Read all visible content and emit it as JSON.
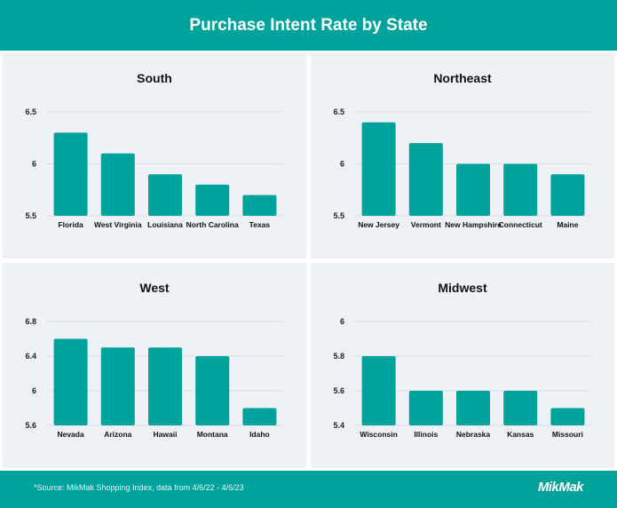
{
  "header": {
    "title": "Purchase Intent Rate by State"
  },
  "footer": {
    "source": "*Source: MikMak Shopping Index, data from 4/6/22 - 4/6/23",
    "logo": "MikMak"
  },
  "colors": {
    "bar": "#00a39b",
    "header": "#00a39b",
    "panel": "#eef2f7",
    "grid": "#d9dee5"
  },
  "chart_data": [
    {
      "type": "bar",
      "title": "South",
      "categories": [
        "Florida",
        "West Virginia",
        "Louisiana",
        "North Carolina",
        "Texas"
      ],
      "values": [
        6.3,
        6.1,
        5.9,
        5.8,
        5.7
      ],
      "ylim": [
        5.5,
        6.5
      ],
      "yticks": [
        "5.5",
        "6",
        "6.5"
      ],
      "grid": true
    },
    {
      "type": "bar",
      "title": "Northeast",
      "categories": [
        "New Jersey",
        "Vermont",
        "New Hampshire",
        "Connecticut",
        "Maine"
      ],
      "values": [
        6.4,
        6.2,
        6.0,
        6.0,
        5.9
      ],
      "ylim": [
        5.5,
        6.5
      ],
      "yticks": [
        "5.5",
        "6",
        "6.5"
      ],
      "grid": true
    },
    {
      "type": "bar",
      "title": "West",
      "categories": [
        "Nevada",
        "Arizona",
        "Hawaii",
        "Montana",
        "Idaho"
      ],
      "values": [
        6.6,
        6.5,
        6.5,
        6.4,
        5.8
      ],
      "ylim": [
        5.6,
        6.8
      ],
      "yticks": [
        "5.6",
        "6",
        "6.4",
        "6.8"
      ],
      "grid": true
    },
    {
      "type": "bar",
      "title": "Midwest",
      "categories": [
        "Wisconsin",
        "Illinois",
        "Nebraska",
        "Kansas",
        "Missouri"
      ],
      "values": [
        5.8,
        5.6,
        5.6,
        5.6,
        5.5
      ],
      "ylim": [
        5.4,
        6.0
      ],
      "yticks": [
        "5.4",
        "5.6",
        "5.8",
        "6"
      ],
      "grid": true
    }
  ]
}
